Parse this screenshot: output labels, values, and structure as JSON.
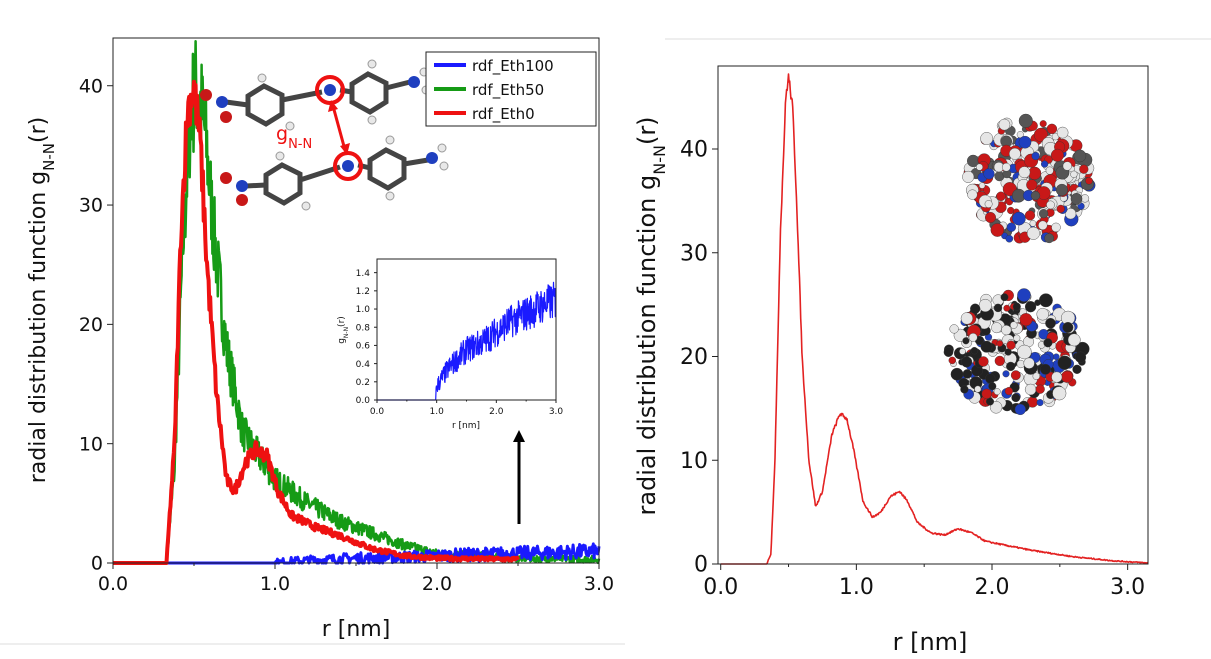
{
  "chart_data": [
    {
      "type": "line",
      "xlabel": "r [nm]",
      "ylabel": "radial distribution function g",
      "ylabel_sub": "N-N",
      "ylabel_tail": "(r)",
      "xlim": [
        0.0,
        3.0
      ],
      "ylim": [
        0,
        44
      ],
      "x_ticks": [
        "0.0",
        "1.0",
        "2.0",
        "3.0"
      ],
      "y_ticks": [
        "0",
        "10",
        "20",
        "30",
        "40"
      ],
      "legend_position": "top-right",
      "series": [
        {
          "name": "rdf_Eth100",
          "color": "#1a1aff",
          "x": [
            0.0,
            1.0,
            1.2,
            1.5,
            1.8,
            2.0,
            2.2,
            2.5,
            2.8,
            3.0
          ],
          "y": [
            0,
            0,
            0.2,
            0.4,
            0.5,
            0.6,
            0.7,
            0.8,
            0.9,
            1.0
          ]
        },
        {
          "name": "rdf_Eth50",
          "color": "#169b16",
          "x": [
            0.0,
            0.33,
            0.38,
            0.43,
            0.48,
            0.52,
            0.57,
            0.62,
            0.7,
            0.8,
            0.9,
            1.0,
            1.2,
            1.4,
            1.6,
            1.8,
            2.0,
            2.5,
            3.0
          ],
          "y": [
            0,
            0,
            8,
            26,
            38,
            40,
            36,
            28,
            18,
            11,
            9,
            7,
            5,
            3.5,
            2.5,
            1.5,
            0.8,
            0.4,
            0.3
          ]
        },
        {
          "name": "rdf_Eth0",
          "color": "#ee1111",
          "x": [
            0.0,
            0.33,
            0.38,
            0.42,
            0.46,
            0.5,
            0.54,
            0.58,
            0.64,
            0.7,
            0.75,
            0.82,
            0.88,
            0.95,
            1.02,
            1.1,
            1.25,
            1.4,
            1.6,
            1.8,
            2.0,
            2.5
          ],
          "y": [
            0,
            0,
            10,
            28,
            38,
            40,
            35,
            25,
            14,
            7,
            6,
            8.5,
            9.5,
            9,
            6,
            4,
            3,
            2.3,
            1.2,
            0.6,
            0.4,
            0.3
          ]
        }
      ]
    },
    {
      "type": "line",
      "note": "inset",
      "xlabel": "r [nm]",
      "ylabel": "g",
      "ylabel_sub": "N-N",
      "ylabel_tail": "(r)",
      "xlim": [
        0.0,
        3.0
      ],
      "ylim": [
        0,
        1.55
      ],
      "x_ticks": [
        "0.0",
        "1.0",
        "2.0",
        "3.0"
      ],
      "y_ticks": [
        "0.0",
        "0.2",
        "0.4",
        "0.6",
        "0.8",
        "1.0",
        "1.2",
        "1.4"
      ],
      "series": [
        {
          "color": "#1a1aff",
          "x": [
            0.0,
            0.98,
            1.0,
            1.2,
            1.5,
            1.8,
            2.0,
            2.2,
            2.5,
            2.8,
            3.0
          ],
          "y": [
            0,
            0,
            0.15,
            0.35,
            0.55,
            0.65,
            0.75,
            0.85,
            0.95,
            1.05,
            1.1
          ]
        }
      ]
    },
    {
      "type": "line",
      "xlabel": "r [nm]",
      "ylabel": "radial distribution function g",
      "ylabel_sub": "N-N",
      "ylabel_tail": "(r)",
      "xlim": [
        -0.02,
        3.15
      ],
      "ylim": [
        0,
        48
      ],
      "x_ticks": [
        "0.0",
        "1.0",
        "2.0",
        "3.0"
      ],
      "y_ticks": [
        "0",
        "10",
        "20",
        "30",
        "40"
      ],
      "series": [
        {
          "color": "#e32222",
          "x": [
            0.0,
            0.34,
            0.37,
            0.4,
            0.44,
            0.48,
            0.5,
            0.53,
            0.56,
            0.6,
            0.65,
            0.7,
            0.75,
            0.82,
            0.88,
            0.93,
            0.98,
            1.05,
            1.12,
            1.18,
            1.25,
            1.32,
            1.38,
            1.45,
            1.55,
            1.65,
            1.75,
            1.85,
            1.95,
            2.1,
            2.3,
            2.6,
            2.9,
            3.15
          ],
          "y": [
            0,
            0,
            1,
            10,
            32,
            45,
            47,
            44,
            35,
            20,
            10,
            5.5,
            7,
            12.5,
            14.5,
            14,
            11,
            6,
            4.5,
            5,
            6.5,
            7,
            6,
            4,
            3,
            2.8,
            3.4,
            3,
            2.2,
            1.8,
            1.3,
            0.7,
            0.3,
            0.1
          ]
        }
      ]
    }
  ],
  "annotations": {
    "molecule_label": "g",
    "molecule_label_sub": "N-N"
  }
}
